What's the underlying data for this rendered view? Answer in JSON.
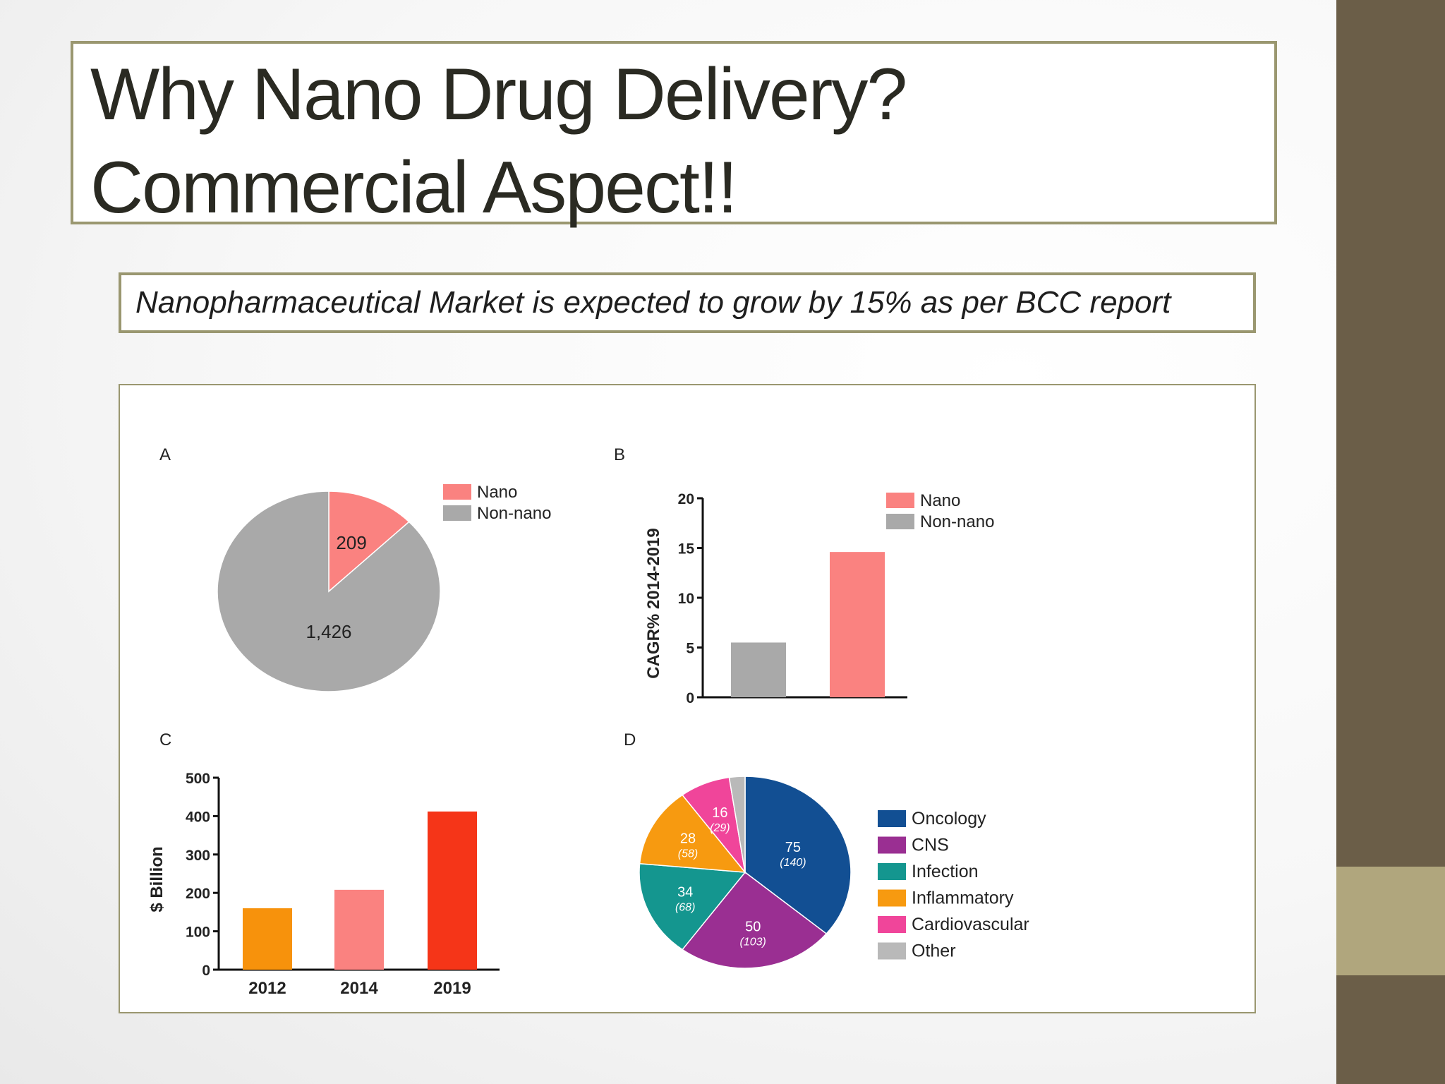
{
  "slide": {
    "title_line1": "Why Nano Drug Delivery?",
    "title_line2": "Commercial Aspect!!",
    "subtitle": "Nanopharmaceutical Market is expected to grow by 15% as per BCC report"
  },
  "colors": {
    "nano": "#fa8280",
    "non_nano": "#a9a9a9",
    "bar_2012": "#f7920c",
    "bar_2014": "#fa8280",
    "bar_2019": "#f53518",
    "oncology": "#124f93",
    "cns": "#9a2f92",
    "infection": "#14968f",
    "inflammatory": "#f79a10",
    "cardiovascular": "#f0459a",
    "other": "#b9b9b9",
    "frame": "#9a9770",
    "band": "#6b5e48",
    "band_accent": "#b0a67d"
  },
  "chart_data": [
    {
      "panel": "A",
      "type": "pie",
      "labels": [
        "Nano",
        "Non-nano"
      ],
      "values": [
        209,
        1426
      ],
      "value_labels": [
        "209",
        "1,426"
      ],
      "legend": [
        "Nano",
        "Non-nano"
      ],
      "legend_position": "top-right"
    },
    {
      "panel": "B",
      "type": "bar",
      "categories": [
        "Non-nano",
        "Nano"
      ],
      "values": [
        5.5,
        14.6
      ],
      "ylabel": "CAGR% 2014-2019",
      "ylim": [
        0,
        20
      ],
      "yticks": [
        0,
        5,
        10,
        15,
        20
      ],
      "legend": [
        "Nano",
        "Non-nano"
      ],
      "legend_position": "top-right",
      "grid": false
    },
    {
      "panel": "C",
      "type": "bar",
      "categories": [
        "2012",
        "2014",
        "2019"
      ],
      "values": [
        160,
        208,
        412
      ],
      "ylabel": "$ Billion",
      "ylim": [
        0,
        500
      ],
      "yticks": [
        0,
        100,
        200,
        300,
        400,
        500
      ],
      "grid": false
    },
    {
      "panel": "D",
      "type": "pie",
      "labels": [
        "Oncology",
        "CNS",
        "Infection",
        "Inflammatory",
        "Cardiovascular",
        "Other"
      ],
      "values": [
        75,
        50,
        34,
        28,
        16,
        5
      ],
      "value_labels": [
        "75",
        "50",
        "34",
        "28",
        "16",
        ""
      ],
      "sub_labels": [
        "(140)",
        "(103)",
        "(68)",
        "(58)",
        "(29)",
        ""
      ],
      "legend": [
        "Oncology",
        "CNS",
        "Infection",
        "Inflammatory",
        "Cardiovascular",
        "Other"
      ],
      "legend_position": "right"
    }
  ]
}
